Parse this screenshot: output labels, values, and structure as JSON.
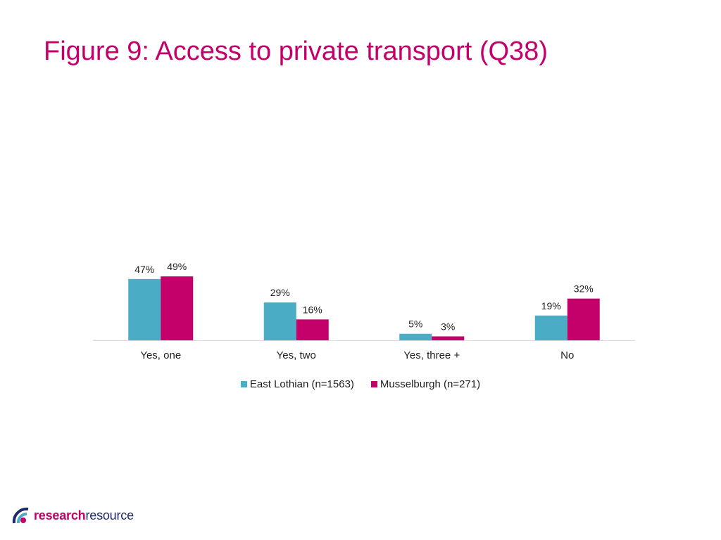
{
  "title": "Figure 9: Access to private transport (Q38)",
  "colors": {
    "title": "#c4006b",
    "series_east_lothian": "#4bacc6",
    "series_musselburgh": "#c4006b"
  },
  "logo": {
    "part1": "research",
    "part2": "resource"
  },
  "chart_data": {
    "type": "bar",
    "categories": [
      "Yes, one",
      "Yes, two",
      "Yes, three +",
      "No"
    ],
    "series": [
      {
        "name": "East Lothian (n=1563)",
        "values": [
          47,
          29,
          5,
          19
        ],
        "labels": [
          "47%",
          "29%",
          "5%",
          "19%"
        ],
        "color": "#4bacc6"
      },
      {
        "name": "Musselburgh (n=271)",
        "values": [
          49,
          16,
          3,
          32
        ],
        "labels": [
          "49%",
          "16%",
          "3%",
          "32%"
        ],
        "color": "#c4006b"
      }
    ],
    "title": "",
    "xlabel": "",
    "ylabel": "",
    "ylim": [
      0,
      50
    ],
    "grid": false,
    "legend": "bottom"
  }
}
